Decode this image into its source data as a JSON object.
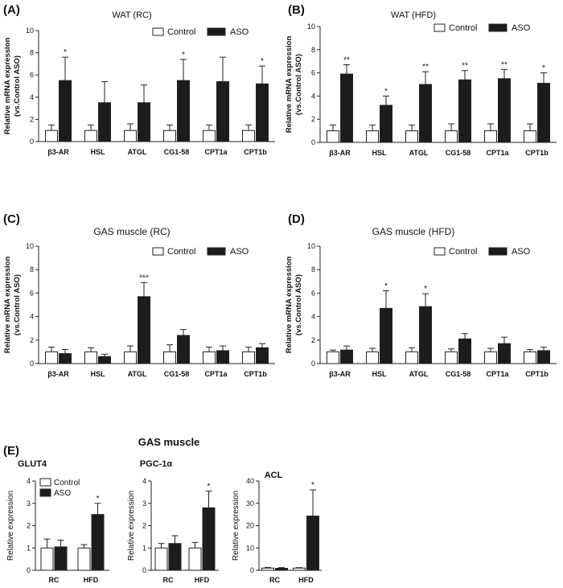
{
  "panels": [
    {
      "letter": "(A)"
    },
    {
      "letter": "(B)"
    },
    {
      "letter": "(C)"
    },
    {
      "letter": "(D)"
    },
    {
      "letter": "(E)"
    }
  ],
  "section_e_title": "GAS muscle",
  "colors": {
    "control": "#ffffff",
    "aso": "#1c1c1c",
    "axis": "#222222"
  },
  "chart_data": [
    {
      "id": "A",
      "type": "bar",
      "title": "WAT (RC)",
      "ylabel": "Relative mRNA expression",
      "ylabel2": "(vs.Control ASO)",
      "ylim": [
        0,
        10
      ],
      "yticks": [
        0,
        2,
        4,
        6,
        8,
        10
      ],
      "categories": [
        "β3-AR",
        "HSL",
        "ATGL",
        "CG1-58",
        "CPT1a",
        "CPT1b"
      ],
      "legend": [
        "Control",
        "ASO"
      ],
      "series": [
        {
          "name": "Control",
          "values": [
            1.0,
            1.0,
            1.0,
            1.0,
            1.0,
            1.0
          ],
          "errors": [
            0.5,
            0.5,
            0.6,
            0.5,
            0.5,
            0.5
          ]
        },
        {
          "name": "ASO",
          "values": [
            5.5,
            3.5,
            3.5,
            5.5,
            5.4,
            5.2
          ],
          "errors": [
            2.1,
            1.9,
            1.6,
            1.9,
            2.2,
            1.6
          ]
        }
      ],
      "annotations": [
        "*",
        "",
        "",
        "*",
        "",
        "*"
      ]
    },
    {
      "id": "B",
      "type": "bar",
      "title": "WAT (HFD)",
      "ylabel": "Relative mRNA expression",
      "ylabel2": "(vs.Control ASO)",
      "ylim": [
        0,
        10
      ],
      "yticks": [
        0,
        2,
        4,
        6,
        8,
        10
      ],
      "categories": [
        "β3-AR",
        "HSL",
        "ATGL",
        "CG1-58",
        "CPT1a",
        "CPT1b"
      ],
      "legend": [
        "Control",
        "ASO"
      ],
      "series": [
        {
          "name": "Control",
          "values": [
            1.0,
            1.0,
            1.0,
            1.0,
            1.0,
            1.0
          ],
          "errors": [
            0.5,
            0.5,
            0.5,
            0.6,
            0.6,
            0.6
          ]
        },
        {
          "name": "ASO",
          "values": [
            5.9,
            3.2,
            5.0,
            5.4,
            5.5,
            5.1
          ],
          "errors": [
            0.8,
            0.8,
            1.1,
            0.8,
            0.8,
            0.9
          ]
        }
      ],
      "annotations": [
        "**",
        "*",
        "**",
        "**",
        "**",
        "*"
      ]
    },
    {
      "id": "C",
      "type": "bar",
      "title": "GAS muscle (RC)",
      "ylabel": "Relative mRNA expression",
      "ylabel2": "(vs.Control ASO)",
      "ylim": [
        0,
        10
      ],
      "yticks": [
        0,
        2,
        4,
        6,
        8,
        10
      ],
      "categories": [
        "β3-AR",
        "HSL",
        "ATGL",
        "CG1-58",
        "CPT1a",
        "CPT1b"
      ],
      "legend": [
        "Control",
        "ASO"
      ],
      "series": [
        {
          "name": "Control",
          "values": [
            1.0,
            1.0,
            1.0,
            1.0,
            1.0,
            1.0
          ],
          "errors": [
            0.4,
            0.35,
            0.5,
            0.6,
            0.4,
            0.4
          ]
        },
        {
          "name": "ASO",
          "values": [
            0.85,
            0.6,
            5.7,
            2.4,
            1.1,
            1.35
          ],
          "errors": [
            0.35,
            0.2,
            1.2,
            0.5,
            0.4,
            0.35
          ]
        }
      ],
      "annotations": [
        "",
        "",
        "***",
        "",
        "",
        ""
      ]
    },
    {
      "id": "D",
      "type": "bar",
      "title": "GAS muscle (HFD)",
      "ylabel": "Relative mRNA expression",
      "ylabel2": "(vs.Control ASO)",
      "ylim": [
        0,
        10
      ],
      "yticks": [
        0,
        2,
        4,
        6,
        8,
        10
      ],
      "categories": [
        "β3-AR",
        "HSL",
        "ATGL",
        "CG1-58",
        "CPT1a",
        "CPT1b"
      ],
      "legend": [
        "Control",
        "ASO"
      ],
      "series": [
        {
          "name": "Control",
          "values": [
            1.0,
            1.0,
            1.0,
            1.0,
            1.0,
            1.0
          ],
          "errors": [
            0.15,
            0.3,
            0.35,
            0.25,
            0.3,
            0.2
          ]
        },
        {
          "name": "ASO",
          "values": [
            1.15,
            4.7,
            4.85,
            2.1,
            1.7,
            1.1
          ],
          "errors": [
            0.35,
            1.5,
            1.1,
            0.45,
            0.55,
            0.3
          ]
        }
      ],
      "annotations": [
        "",
        "*",
        "*",
        "",
        "",
        ""
      ]
    },
    {
      "id": "E1",
      "type": "bar",
      "title": "GLUT4",
      "ylabel": "Relative expression",
      "ylabel2": "",
      "ylim": [
        0,
        4
      ],
      "yticks": [
        0,
        1,
        2,
        3,
        4
      ],
      "categories": [
        "RC",
        "HFD"
      ],
      "legend": [
        "Control",
        "ASO"
      ],
      "series": [
        {
          "name": "Control",
          "values": [
            1.0,
            1.0
          ],
          "errors": [
            0.4,
            0.15
          ]
        },
        {
          "name": "ASO",
          "values": [
            1.05,
            2.5
          ],
          "errors": [
            0.3,
            0.5
          ]
        }
      ],
      "annotations": [
        "",
        "*"
      ]
    },
    {
      "id": "E2",
      "type": "bar",
      "title": "PGC-1α",
      "ylabel": "Relative expression",
      "ylabel2": "",
      "ylim": [
        0,
        4
      ],
      "yticks": [
        0,
        1,
        2,
        3,
        4
      ],
      "categories": [
        "RC",
        "HFD"
      ],
      "legend": [],
      "series": [
        {
          "name": "Control",
          "values": [
            1.0,
            1.0
          ],
          "errors": [
            0.2,
            0.25
          ]
        },
        {
          "name": "ASO",
          "values": [
            1.2,
            2.8
          ],
          "errors": [
            0.35,
            0.75
          ]
        }
      ],
      "annotations": [
        "",
        "*"
      ]
    },
    {
      "id": "E3",
      "type": "bar",
      "title": "ACL",
      "ylabel": "Relative expression",
      "ylabel2": "",
      "ylim": [
        0,
        40
      ],
      "yticks": [
        0,
        10,
        20,
        30,
        40
      ],
      "categories": [
        "RC",
        "HFD"
      ],
      "legend": [],
      "series": [
        {
          "name": "Control",
          "values": [
            1.0,
            1.0
          ],
          "errors": [
            0.3,
            0.2
          ]
        },
        {
          "name": "ASO",
          "values": [
            0.9,
            24.3
          ],
          "errors": [
            0.3,
            11.7
          ]
        }
      ],
      "annotations": [
        "",
        "*"
      ]
    }
  ]
}
